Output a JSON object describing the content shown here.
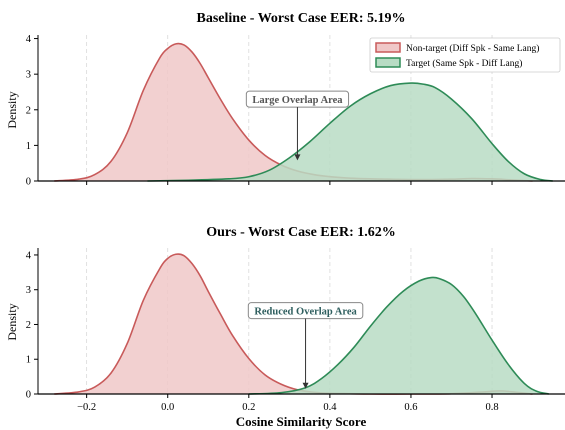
{
  "chart_data": [
    {
      "type": "area",
      "title": "Baseline - Worst Case EER: 5.19%",
      "ylabel": "Density",
      "xlabel": "",
      "xlim": [
        -0.32,
        0.98
      ],
      "ylim": [
        0,
        4.1
      ],
      "xticks": [
        -0.2,
        0.0,
        0.2,
        0.4,
        0.6,
        0.8
      ],
      "xtick_labels": [
        "",
        "",
        "",
        "",
        "",
        ""
      ],
      "yticks": [
        0,
        1,
        2,
        3,
        4
      ],
      "ytick_labels": [
        "0",
        "1",
        "2",
        "3",
        "4"
      ],
      "grid": "vertical dashed",
      "legend": "top-right",
      "series": [
        {
          "name": "Non-target (Diff Spk - Same Lang)",
          "color": "#c85a5a",
          "fill": "#f0c8c8",
          "x": [
            -0.28,
            -0.22,
            -0.18,
            -0.14,
            -0.1,
            -0.06,
            -0.02,
            0.0,
            0.02,
            0.04,
            0.06,
            0.08,
            0.1,
            0.13,
            0.16,
            0.2,
            0.24,
            0.28,
            0.32,
            0.36,
            0.4,
            0.45,
            0.5,
            0.55,
            0.6,
            0.65,
            0.7,
            0.75,
            0.8,
            0.85,
            0.9
          ],
          "y": [
            0.0,
            0.05,
            0.18,
            0.55,
            1.35,
            2.55,
            3.45,
            3.72,
            3.85,
            3.82,
            3.62,
            3.3,
            2.9,
            2.3,
            1.75,
            1.15,
            0.72,
            0.45,
            0.28,
            0.18,
            0.12,
            0.08,
            0.06,
            0.05,
            0.04,
            0.04,
            0.05,
            0.07,
            0.06,
            0.03,
            0.0
          ]
        },
        {
          "name": "Target (Same Spk - Diff Lang)",
          "color": "#2e8b57",
          "fill": "#b8dcc4",
          "x": [
            -0.05,
            0.05,
            0.15,
            0.2,
            0.25,
            0.3,
            0.35,
            0.4,
            0.45,
            0.5,
            0.55,
            0.6,
            0.63,
            0.66,
            0.7,
            0.75,
            0.8,
            0.84,
            0.88,
            0.92,
            0.95
          ],
          "y": [
            0.0,
            0.02,
            0.06,
            0.12,
            0.3,
            0.65,
            1.1,
            1.62,
            2.1,
            2.45,
            2.68,
            2.75,
            2.72,
            2.62,
            2.3,
            1.75,
            1.05,
            0.55,
            0.2,
            0.04,
            0.0
          ]
        }
      ],
      "annotations": [
        {
          "text": "Large Overlap Area",
          "x": 0.32,
          "y": 2.3,
          "arrow_to": [
            0.32,
            0.58
          ],
          "color": "#555555"
        }
      ]
    },
    {
      "type": "area",
      "title": "Ours - Worst Case EER: 1.62%",
      "ylabel": "Density",
      "xlabel": "Cosine Similarity Score",
      "xlim": [
        -0.32,
        0.98
      ],
      "ylim": [
        0,
        4.2
      ],
      "xticks": [
        -0.2,
        0.0,
        0.2,
        0.4,
        0.6,
        0.8
      ],
      "xtick_labels": [
        "−0.2",
        "0.0",
        "0.2",
        "0.4",
        "0.6",
        "0.8"
      ],
      "yticks": [
        0,
        1,
        2,
        3,
        4
      ],
      "ytick_labels": [
        "0",
        "1",
        "2",
        "3",
        "4"
      ],
      "grid": "vertical dashed",
      "legend": "none",
      "series": [
        {
          "name": "",
          "color": "#c85a5a",
          "fill": "#f0c8c8",
          "x": [
            -0.28,
            -0.22,
            -0.18,
            -0.14,
            -0.1,
            -0.06,
            -0.02,
            0.0,
            0.02,
            0.04,
            0.06,
            0.08,
            0.1,
            0.13,
            0.16,
            0.2,
            0.24,
            0.28,
            0.32,
            0.36,
            0.4,
            0.45,
            0.5,
            0.6,
            0.7,
            0.78,
            0.82,
            0.86,
            0.9
          ],
          "y": [
            0.0,
            0.06,
            0.2,
            0.6,
            1.45,
            2.7,
            3.6,
            3.9,
            4.02,
            3.98,
            3.75,
            3.4,
            2.95,
            2.3,
            1.68,
            1.02,
            0.55,
            0.28,
            0.12,
            0.05,
            0.02,
            0.01,
            0.0,
            0.0,
            0.01,
            0.06,
            0.09,
            0.05,
            0.0
          ]
        },
        {
          "name": "",
          "color": "#2e8b57",
          "fill": "#b8dcc4",
          "x": [
            0.2,
            0.28,
            0.34,
            0.38,
            0.42,
            0.46,
            0.5,
            0.54,
            0.58,
            0.62,
            0.65,
            0.67,
            0.7,
            0.73,
            0.76,
            0.8,
            0.84,
            0.88,
            0.91,
            0.94
          ],
          "y": [
            0.0,
            0.04,
            0.18,
            0.45,
            0.85,
            1.35,
            1.95,
            2.5,
            2.95,
            3.25,
            3.35,
            3.32,
            3.15,
            2.8,
            2.3,
            1.55,
            0.85,
            0.3,
            0.08,
            0.0
          ]
        }
      ],
      "annotations": [
        {
          "text": "Reduced Overlap Area",
          "x": 0.34,
          "y": 2.4,
          "arrow_to": [
            0.34,
            0.15
          ],
          "color": "#2f5f5f"
        }
      ]
    }
  ]
}
